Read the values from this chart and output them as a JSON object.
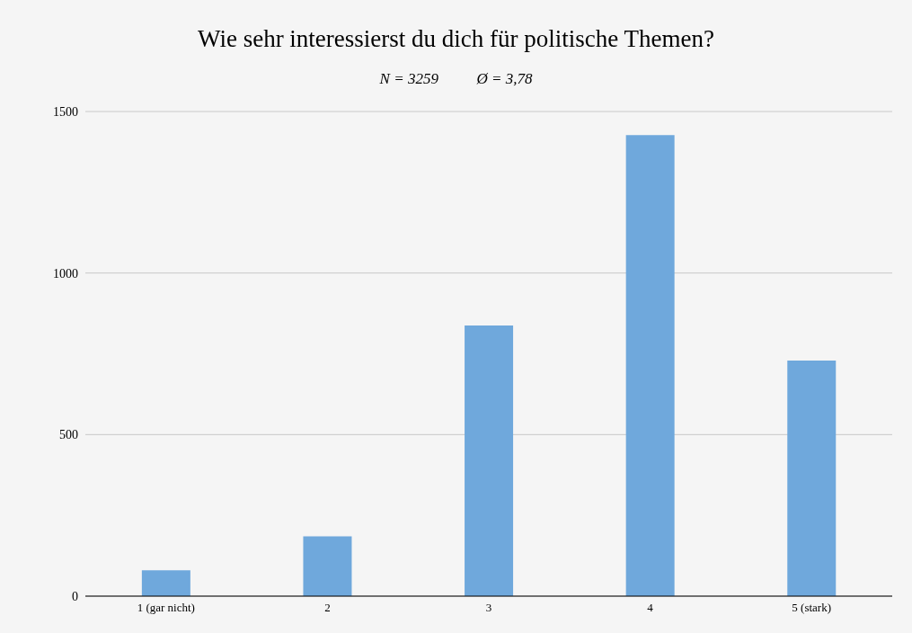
{
  "chart_data": {
    "type": "bar",
    "title": "Wie sehr interessierst du dich für politische Themen?",
    "subtitle": "N = 3259          Ø = 3,78",
    "categories": [
      "1 (gar nicht)",
      "2",
      "3",
      "4",
      "5 (stark)"
    ],
    "values": [
      80,
      185,
      838,
      1427,
      729
    ],
    "color": "#6fa8dc",
    "ylim": [
      0,
      1500
    ],
    "yticks": [
      0,
      500,
      1000,
      1500
    ],
    "grid": "y"
  }
}
